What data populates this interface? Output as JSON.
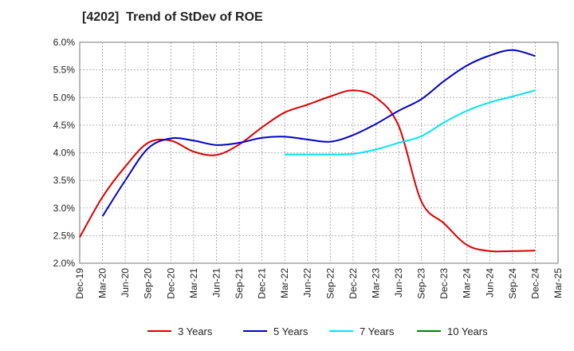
{
  "chart_data": {
    "type": "line",
    "title": "[4202]  Trend of StDev of ROE",
    "xlabel": "",
    "ylabel": "",
    "x": [
      "Dec-19",
      "Mar-20",
      "Jun-20",
      "Sep-20",
      "Dec-20",
      "Mar-21",
      "Jun-21",
      "Sep-21",
      "Dec-21",
      "Mar-22",
      "Jun-22",
      "Sep-22",
      "Dec-22",
      "Mar-23",
      "Jun-23",
      "Sep-23",
      "Dec-23",
      "Mar-24",
      "Jun-24",
      "Sep-24",
      "Dec-24",
      "Mar-25"
    ],
    "yticks": [
      "2.0%",
      "2.5%",
      "3.0%",
      "3.5%",
      "4.0%",
      "4.5%",
      "5.0%",
      "5.5%",
      "6.0%"
    ],
    "ylim": [
      2.0,
      6.0
    ],
    "grid": true,
    "legend_position": "bottom",
    "series": [
      {
        "name": "3 Years",
        "color": "#dd0000",
        "values": [
          2.47,
          3.2,
          3.75,
          4.18,
          4.22,
          4.02,
          3.96,
          4.15,
          4.46,
          4.73,
          4.87,
          5.02,
          5.13,
          5.0,
          4.49,
          3.12,
          2.72,
          2.33,
          2.22,
          2.22,
          2.23,
          null
        ]
      },
      {
        "name": "5 Years",
        "color": "#0000cc",
        "values": [
          null,
          2.85,
          3.5,
          4.08,
          4.26,
          4.22,
          4.14,
          4.18,
          4.27,
          4.29,
          4.24,
          4.2,
          4.32,
          4.52,
          4.76,
          4.97,
          5.3,
          5.58,
          5.76,
          5.86,
          5.75,
          null
        ]
      },
      {
        "name": "7 Years",
        "color": "#00e5ee",
        "values": [
          null,
          null,
          null,
          null,
          null,
          null,
          null,
          null,
          null,
          3.97,
          3.97,
          3.97,
          3.98,
          4.06,
          4.18,
          4.3,
          4.55,
          4.76,
          4.91,
          5.02,
          5.13,
          null
        ]
      },
      {
        "name": "10 Years",
        "color": "#008000",
        "values": [
          null,
          null,
          null,
          null,
          null,
          null,
          null,
          null,
          null,
          null,
          null,
          null,
          null,
          null,
          null,
          null,
          null,
          null,
          null,
          null,
          null,
          null
        ]
      }
    ]
  }
}
